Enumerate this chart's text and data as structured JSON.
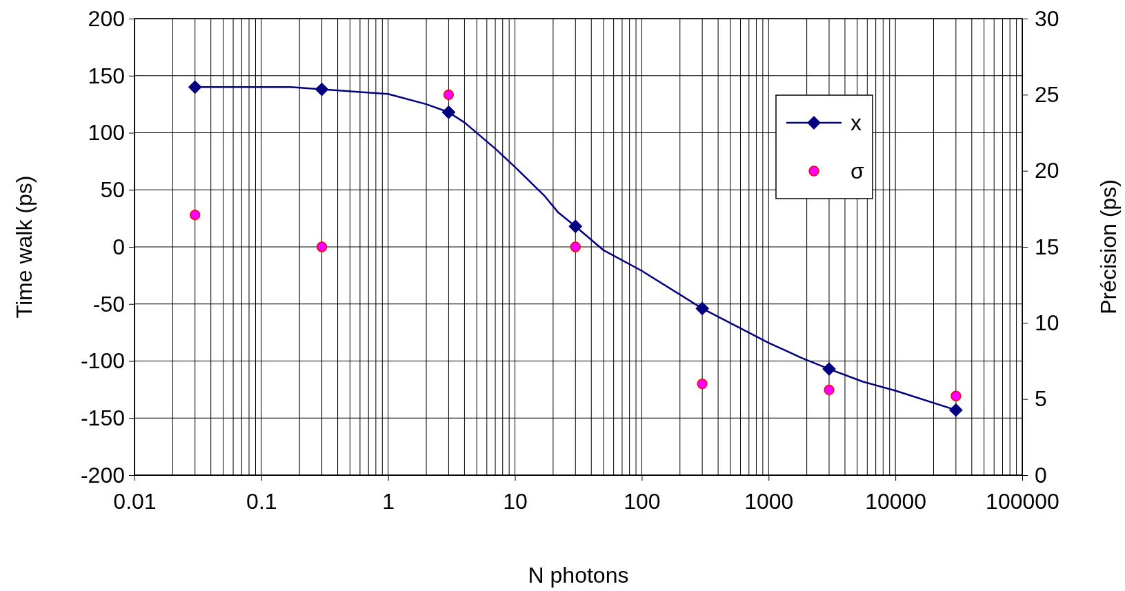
{
  "chart_data": {
    "type": "line",
    "xlabel": "N photons",
    "ylabel": "Time walk (ps)",
    "y2label": "Précision (ps)",
    "log": "x",
    "xlim": [
      0.01,
      100000
    ],
    "xticks": [
      0.01,
      0.1,
      1,
      10,
      100,
      1000,
      10000,
      100000
    ],
    "ylim": [
      -200,
      200
    ],
    "yticks": [
      -200,
      -150,
      -100,
      -50,
      0,
      50,
      100,
      150,
      200
    ],
    "y2lim": [
      0,
      30
    ],
    "y2ticks": [
      0,
      5,
      10,
      15,
      20,
      25,
      30
    ],
    "grid": true,
    "legend": "top right",
    "line_style": "solid",
    "series": [
      {
        "name": "x",
        "color": "#000080",
        "x": [
          0.03,
          0.17,
          0.3,
          1,
          2,
          3,
          4,
          7,
          10,
          17,
          22,
          30,
          50,
          100,
          300,
          1000,
          1800,
          3000,
          5500,
          10000,
          30000
        ],
        "values": [
          140,
          140,
          138,
          134,
          125,
          118,
          109,
          86,
          70,
          45,
          30,
          18,
          -3,
          -21,
          -54,
          -84,
          -97,
          -107,
          -118,
          -126,
          -143
        ]
      },
      {
        "type": "scatter",
        "marker": "diamond",
        "color": "#000080",
        "x": [
          0.03,
          0.3,
          3,
          30,
          300,
          3000,
          30000
        ],
        "values": [
          140,
          138,
          118,
          18,
          -54,
          -107,
          -143
        ]
      },
      {
        "name": "σ",
        "type": "scatter",
        "marker": "circle",
        "axis": "y2",
        "color": "#ff00ff",
        "x": [
          0.03,
          0.3,
          3,
          30,
          300,
          3000,
          30000
        ],
        "values": [
          17.1,
          15,
          25,
          15,
          6,
          5.6,
          5.2
        ]
      }
    ]
  }
}
